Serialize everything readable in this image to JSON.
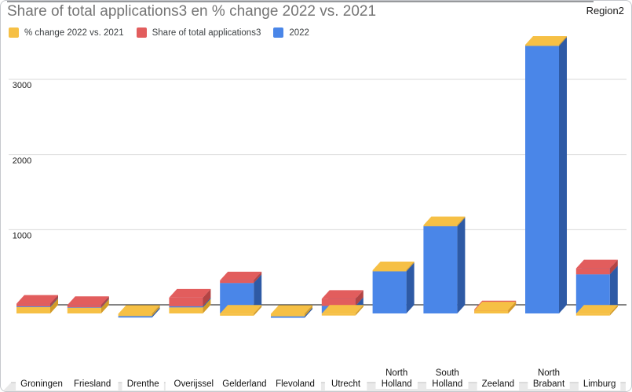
{
  "header": {
    "title": "Share of total applications3 en % change 2022 vs. 2021",
    "region_label": "Region2"
  },
  "legend": {
    "items": [
      {
        "label": "% change 2022 vs. 2021",
        "color": "#F6C045"
      },
      {
        "label": "Share of total applications3",
        "color": "#E25D5D"
      },
      {
        "label": "2022",
        "color": "#4A86E8"
      }
    ]
  },
  "chart_data": {
    "type": "bar",
    "subtype": "3d-stacked-column",
    "title": "Share of total applications3 en % change 2022 vs. 2021",
    "corner_label": "Region2",
    "legend_position": "top",
    "grid": true,
    "xlabel": "",
    "ylabel": "",
    "y_ticks": [
      0,
      1000,
      2000,
      3000
    ],
    "ylim": [
      -100,
      3900
    ],
    "categories": [
      "Groningen",
      "Friesland",
      "Drenthe",
      "Overijssel",
      "Gelderland",
      "Flevoland",
      "Utrecht",
      "North Holland",
      "South Holland",
      "Zeeland",
      "North Brabant",
      "Limburg"
    ],
    "two_line_indices": [
      7,
      8,
      10
    ],
    "series": [
      {
        "name": "% change 2022 vs. 2021",
        "color": "#F6C045",
        "color_dark": "#D29B2A",
        "values": [
          85,
          75,
          -35,
          80,
          -30,
          -38,
          -28,
          15,
          15,
          40,
          15,
          -28
        ]
      },
      {
        "name": "Share of total applications3",
        "color": "#E25D5D",
        "color_dark": "#B34444",
        "values": [
          35,
          30,
          0,
          115,
          35,
          0,
          95,
          0,
          0,
          15,
          0,
          80
        ]
      },
      {
        "name": "2022",
        "color": "#4A86E8",
        "color_dark": "#2E5AA5",
        "values": [
          10,
          7,
          20,
          15,
          405,
          20,
          100,
          560,
          1160,
          0,
          3560,
          520
        ]
      }
    ],
    "render_stacks": [
      [
        [
          0,
          0,
          85
        ],
        [
          2,
          85,
          95
        ],
        [
          1,
          95,
          130
        ]
      ],
      [
        [
          0,
          0,
          75
        ],
        [
          2,
          75,
          82
        ],
        [
          1,
          82,
          112
        ]
      ],
      [
        [
          2,
          -55,
          -35
        ],
        [
          0,
          -35,
          -5
        ]
      ],
      [
        [
          0,
          0,
          80
        ],
        [
          2,
          80,
          95
        ],
        [
          1,
          95,
          210
        ]
      ],
      [
        [
          2,
          0,
          405
        ],
        [
          1,
          405,
          440
        ],
        [
          0,
          -30,
          -2
        ]
      ],
      [
        [
          2,
          -58,
          -38
        ],
        [
          0,
          -38,
          -5
        ]
      ],
      [
        [
          2,
          0,
          100
        ],
        [
          1,
          100,
          195
        ],
        [
          0,
          -28,
          -2
        ]
      ],
      [
        [
          2,
          0,
          560
        ],
        [
          0,
          560,
          575
        ]
      ],
      [
        [
          2,
          0,
          1160
        ],
        [
          0,
          1160,
          1175
        ]
      ],
      [
        [
          1,
          0,
          55
        ],
        [
          0,
          0,
          40
        ]
      ],
      [
        [
          2,
          0,
          3560
        ],
        [
          0,
          3560,
          3575
        ]
      ],
      [
        [
          2,
          0,
          520
        ],
        [
          1,
          520,
          600
        ],
        [
          0,
          -28,
          -2
        ]
      ]
    ]
  }
}
